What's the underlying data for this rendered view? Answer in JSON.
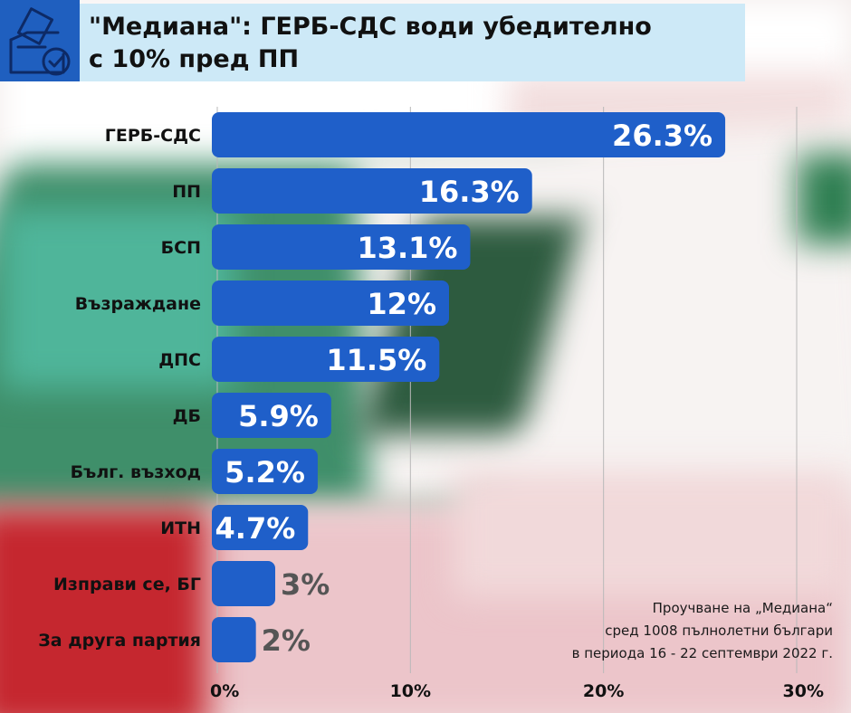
{
  "header": {
    "title_line1": "\"Медиана\": ГЕРБ-СДС води убедително",
    "title_line2": "с 10% пред ПП",
    "icon": "ballot-box-check-icon"
  },
  "note": {
    "line1": "Проучване на „Медиана“",
    "line2": "сред  1008 пълнолетни българи",
    "line3": "в периода 16 - 22 септември 2022 г."
  },
  "colors": {
    "bar": "#1f5fc9",
    "title_bg": "#cde9f7",
    "icon_bg": "#1f5fbf",
    "label_outside": "#555555"
  },
  "chart_data": {
    "type": "bar",
    "orientation": "horizontal",
    "categories": [
      "ГЕРБ-СДС",
      "ПП",
      "БСП",
      "Възраждане",
      "ДПС",
      "ДБ",
      "Бълг. възход",
      "ИТН",
      "Изправи се, БГ",
      "За друга партия"
    ],
    "values": [
      26.3,
      16.3,
      13.1,
      12,
      11.5,
      5.9,
      5.2,
      4.7,
      3,
      2
    ],
    "value_labels": [
      "26.3%",
      "16.3%",
      "13.1%",
      "12%",
      "11.5%",
      "5.9%",
      "5.2%",
      "4.7%",
      "3%",
      "2%"
    ],
    "xlim": [
      0,
      30
    ],
    "xticks": [
      "0%",
      "10%",
      "20%",
      "30%"
    ],
    "grid": true
  }
}
